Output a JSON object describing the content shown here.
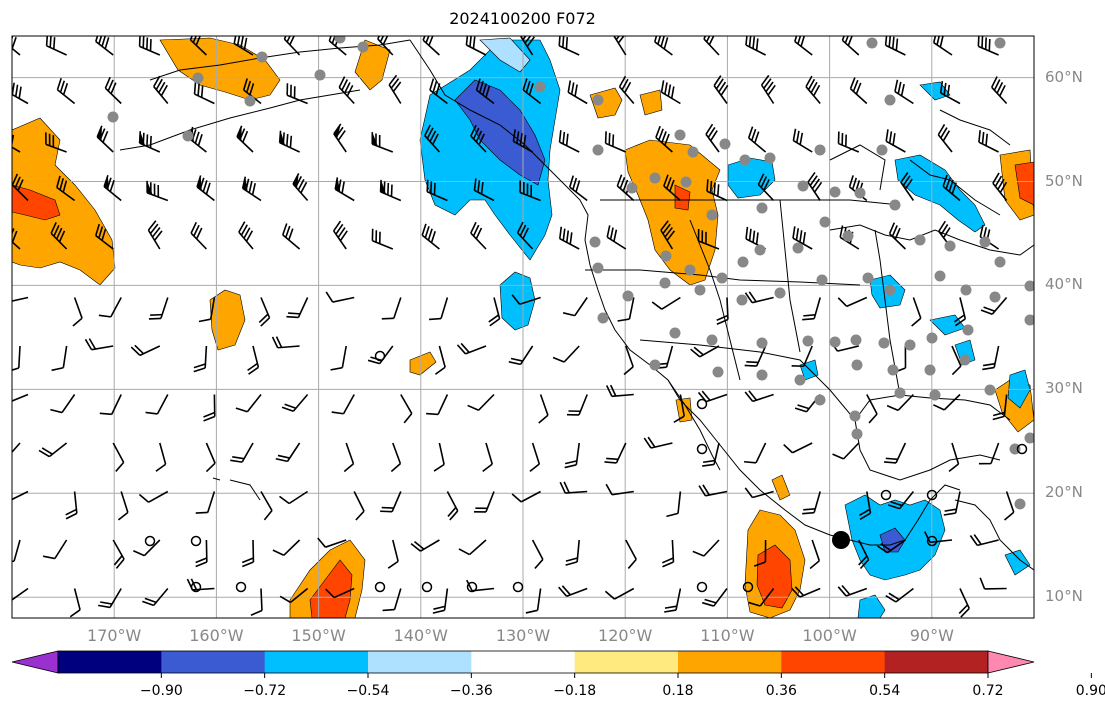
{
  "title": "2024100200 F072",
  "map": {
    "lat_labels": [
      "60°N",
      "50°N",
      "40°N",
      "30°N",
      "20°N",
      "10°N"
    ],
    "lat_values": [
      60,
      50,
      40,
      30,
      20,
      10
    ],
    "lon_labels": [
      "170°W",
      "160°W",
      "150°W",
      "140°W",
      "130°W",
      "120°W",
      "110°W",
      "100°W",
      "90°W"
    ],
    "lon_values": [
      -170,
      -160,
      -150,
      -140,
      -130,
      -120,
      -110,
      -100,
      -90
    ],
    "extent": {
      "lon_min": -180,
      "lon_max": -80,
      "lat_min": 8,
      "lat_max": 64
    },
    "gridlines": true
  },
  "colorbar": {
    "tick_labels": [
      "−0.90",
      "−0.72",
      "−0.54",
      "−0.36",
      "−0.18",
      "0.18",
      "0.36",
      "0.54",
      "0.72",
      "0.90"
    ],
    "colors": [
      "#9b30d0",
      "#00007f",
      "#3a5bd1",
      "#00bfff",
      "#aee0ff",
      "#ffffff",
      "#ffea80",
      "#ffa500",
      "#ff4500",
      "#b22222",
      "#ff88b0"
    ],
    "extend": "both"
  },
  "shading": {
    "orange": "#ffa500",
    "red": "#ff4500",
    "blue": "#00bfff",
    "dark_blue": "#3a5bd1",
    "light_blue": "#aee0ff"
  }
}
